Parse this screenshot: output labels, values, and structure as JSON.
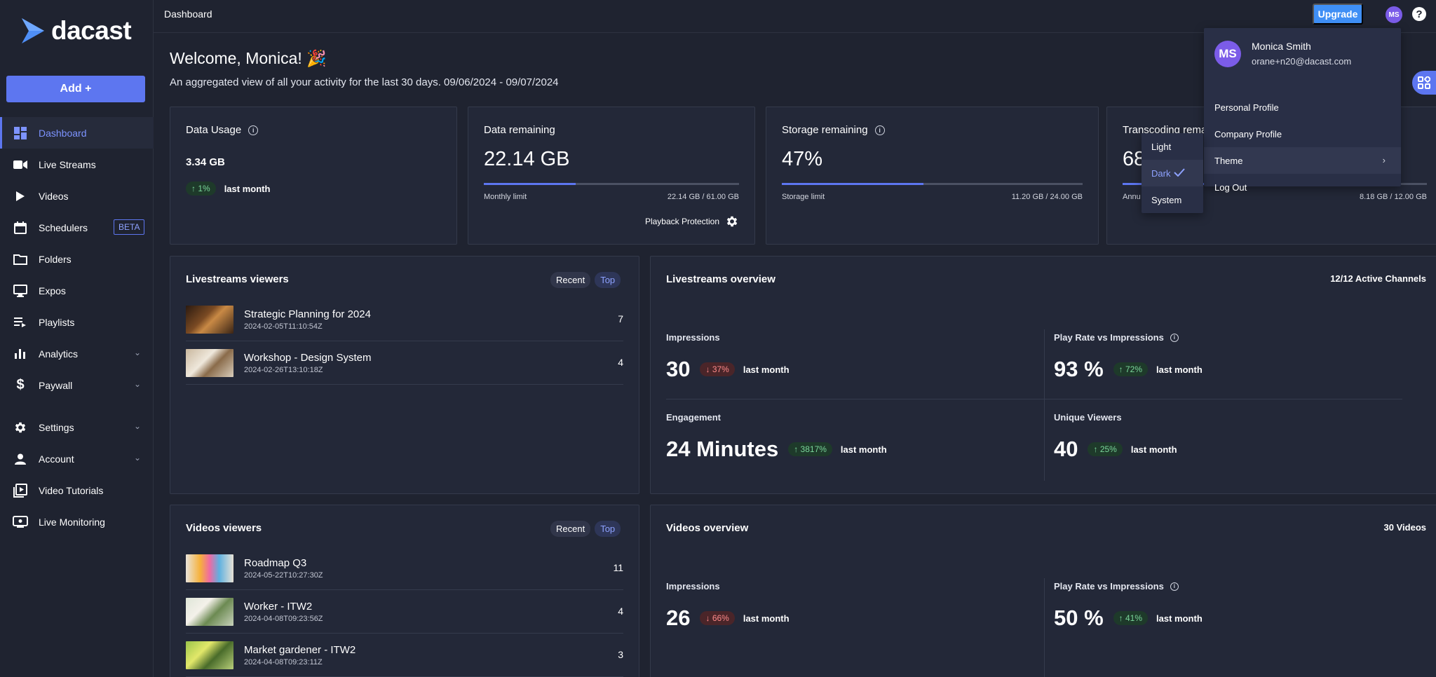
{
  "brand": {
    "name": "dacast"
  },
  "sidebar": {
    "add_label": "Add +",
    "items": [
      {
        "label": "Dashboard",
        "icon": "dashboard-icon",
        "active": true
      },
      {
        "label": "Live Streams",
        "icon": "camera-icon"
      },
      {
        "label": "Videos",
        "icon": "play-icon"
      },
      {
        "label": "Schedulers",
        "icon": "calendar-icon",
        "badge": "BETA"
      },
      {
        "label": "Folders",
        "icon": "folder-icon"
      },
      {
        "label": "Expos",
        "icon": "monitor-icon"
      },
      {
        "label": "Playlists",
        "icon": "playlist-icon"
      },
      {
        "label": "Analytics",
        "icon": "bar-chart-icon",
        "expandable": true
      },
      {
        "label": "Paywall",
        "icon": "dollar-icon",
        "expandable": true
      },
      {
        "label": "Settings",
        "icon": "gear-icon",
        "expandable": true
      },
      {
        "label": "Account",
        "icon": "person-icon",
        "expandable": true
      },
      {
        "label": "Video Tutorials",
        "icon": "video-library-icon"
      },
      {
        "label": "Live Monitoring",
        "icon": "live-monitor-icon"
      }
    ]
  },
  "header": {
    "breadcrumb": "Dashboard",
    "upgrade_label": "Upgrade",
    "avatar_initials": "MS",
    "help_glyph": "?"
  },
  "welcome": {
    "title": "Welcome, Monica! 🎉",
    "subtitle": "An aggregated view of all your activity for the last 30 days. 09/06/2024 - 09/07/2024"
  },
  "stats": {
    "data_usage": {
      "title": "Data Usage",
      "value": "3.34  GB",
      "trend": "↑ 1%",
      "trend_label": "last month"
    },
    "data_remaining": {
      "title": "Data remaining",
      "value": "22.14 GB",
      "progress": 0.36,
      "limit_label": "Monthly limit",
      "limit_value": "22.14 GB / 61.00 GB",
      "playback_label": "Playback Protection"
    },
    "storage_remaining": {
      "title": "Storage remaining",
      "value": "47%",
      "progress": 0.47,
      "limit_label": "Storage limit",
      "limit_value": "11.20 GB / 24.00 GB"
    },
    "transcoding": {
      "title": "Transcoding rema",
      "value": "68",
      "progress": 0.68,
      "limit_label": "Annu",
      "limit_value": "8.18 GB / 12.00 GB"
    }
  },
  "livestreams_viewers": {
    "title": "Livestreams viewers",
    "recent_label": "Recent",
    "top_label": "Top",
    "rows": [
      {
        "title": "Strategic Planning for 2024",
        "date": "2024-02-05T11:10:54Z",
        "count": "7"
      },
      {
        "title": "Workshop - Design System",
        "date": "2024-02-26T13:10:18Z",
        "count": "4"
      }
    ]
  },
  "livestreams_overview": {
    "title": "Livestreams overview",
    "channels": "12/12 Active Channels",
    "impressions": {
      "label": "Impressions",
      "value": "30",
      "trend": "↓ 37%",
      "trend_label": "last month"
    },
    "play_rate": {
      "label": "Play Rate vs Impressions",
      "value": "93 %",
      "trend": "↑ 72%",
      "trend_label": "last month"
    },
    "engagement": {
      "label": "Engagement",
      "value": "24 Minutes",
      "trend": "↑ 3817%",
      "trend_label": "last month"
    },
    "unique_viewers": {
      "label": "Unique Viewers",
      "value": "40",
      "trend": "↑ 25%",
      "trend_label": "last month"
    }
  },
  "videos_viewers": {
    "title": "Videos viewers",
    "recent_label": "Recent",
    "top_label": "Top",
    "rows": [
      {
        "title": "Roadmap Q3",
        "date": "2024-05-22T10:27:30Z",
        "count": "11"
      },
      {
        "title": "Worker - ITW2",
        "date": "2024-04-08T09:23:56Z",
        "count": "4"
      },
      {
        "title": "Market gardener - ITW2",
        "date": "2024-04-08T09:23:11Z",
        "count": "3"
      }
    ]
  },
  "videos_overview": {
    "title": "Videos overview",
    "count": "30 Videos",
    "impressions": {
      "label": "Impressions",
      "value": "26",
      "trend": "↓ 66%",
      "trend_label": "last month"
    },
    "play_rate": {
      "label": "Play Rate vs Impressions",
      "value": "50 %",
      "trend": "↑ 41%",
      "trend_label": "last month"
    }
  },
  "user_menu": {
    "initials": "MS",
    "name": "Monica Smith",
    "email": "orane+n20@dacast.com",
    "items": [
      "Personal Profile",
      "Company Profile",
      "Theme",
      "Log Out"
    ]
  },
  "theme_menu": {
    "options": [
      "Light",
      "Dark",
      "System"
    ],
    "selected": "Dark"
  },
  "colors": {
    "accent": "#5d76f0",
    "upgrade": "#3f8ff5",
    "background": "#1f2330",
    "card": "#232838",
    "up": "#7bd79b",
    "down": "#ff8a8a"
  }
}
